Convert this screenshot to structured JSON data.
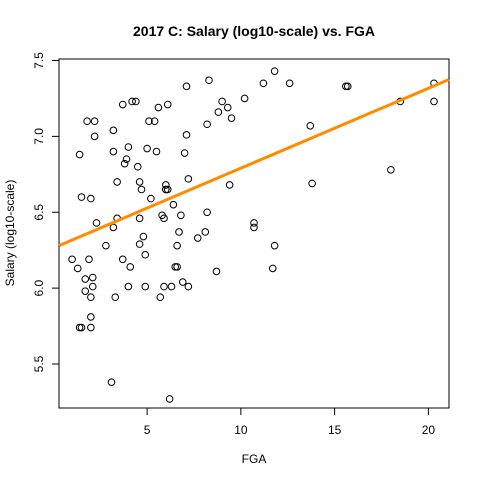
{
  "chart_data": {
    "type": "scatter",
    "title": "2017 C: Salary (log10-scale) vs. FGA",
    "xlabel": "FGA",
    "ylabel": "Salary (log10-scale)",
    "xlim": [
      0.3,
      21.1
    ],
    "ylim": [
      5.21,
      7.51
    ],
    "x_ticks": [
      5,
      10,
      15,
      20
    ],
    "y_ticks": [
      5.5,
      6.0,
      6.5,
      7.0,
      7.5
    ],
    "x_tick_labels": [
      "5",
      "10",
      "15",
      "20"
    ],
    "y_tick_labels": [
      "5.5",
      "6.0",
      "6.5",
      "7.0",
      "7.5"
    ],
    "grid": false,
    "points": [
      [
        1.0,
        6.19
      ],
      [
        1.3,
        6.13
      ],
      [
        1.4,
        6.88
      ],
      [
        1.5,
        6.6
      ],
      [
        1.4,
        5.74
      ],
      [
        1.5,
        5.74
      ],
      [
        1.7,
        6.06
      ],
      [
        1.7,
        5.98
      ],
      [
        1.8,
        7.1
      ],
      [
        1.9,
        6.19
      ],
      [
        2.0,
        6.59
      ],
      [
        2.0,
        5.94
      ],
      [
        2.0,
        5.81
      ],
      [
        2.0,
        5.74
      ],
      [
        2.1,
        6.07
      ],
      [
        2.1,
        6.01
      ],
      [
        2.2,
        7.1
      ],
      [
        2.2,
        7.0
      ],
      [
        2.3,
        6.43
      ],
      [
        2.8,
        6.28
      ],
      [
        3.1,
        5.38
      ],
      [
        3.2,
        7.04
      ],
      [
        3.2,
        6.9
      ],
      [
        3.2,
        6.4
      ],
      [
        3.3,
        5.94
      ],
      [
        3.4,
        6.7
      ],
      [
        3.4,
        6.46
      ],
      [
        3.7,
        7.21
      ],
      [
        3.7,
        6.19
      ],
      [
        3.8,
        6.82
      ],
      [
        3.9,
        6.85
      ],
      [
        4.0,
        6.93
      ],
      [
        4.0,
        6.01
      ],
      [
        4.1,
        6.14
      ],
      [
        4.2,
        7.23
      ],
      [
        4.4,
        7.23
      ],
      [
        4.5,
        6.8
      ],
      [
        4.6,
        6.46
      ],
      [
        4.6,
        6.7
      ],
      [
        4.6,
        6.29
      ],
      [
        4.7,
        6.65
      ],
      [
        4.8,
        6.34
      ],
      [
        4.9,
        6.22
      ],
      [
        4.9,
        6.01
      ],
      [
        5.0,
        6.92
      ],
      [
        5.1,
        7.1
      ],
      [
        5.2,
        6.59
      ],
      [
        5.4,
        7.1
      ],
      [
        5.5,
        6.9
      ],
      [
        5.6,
        7.19
      ],
      [
        5.7,
        5.94
      ],
      [
        5.8,
        6.48
      ],
      [
        5.9,
        6.46
      ],
      [
        5.9,
        6.01
      ],
      [
        6.0,
        6.68
      ],
      [
        6.0,
        6.65
      ],
      [
        6.0,
        6.65
      ],
      [
        6.1,
        7.21
      ],
      [
        6.1,
        6.65
      ],
      [
        6.2,
        5.27
      ],
      [
        6.3,
        6.01
      ],
      [
        6.4,
        6.55
      ],
      [
        6.5,
        6.14
      ],
      [
        6.6,
        6.28
      ],
      [
        6.6,
        6.14
      ],
      [
        6.7,
        6.37
      ],
      [
        6.8,
        6.48
      ],
      [
        6.9,
        6.04
      ],
      [
        7.0,
        6.89
      ],
      [
        7.1,
        7.33
      ],
      [
        7.1,
        7.01
      ],
      [
        7.2,
        6.72
      ],
      [
        7.2,
        6.01
      ],
      [
        7.7,
        6.33
      ],
      [
        8.1,
        6.37
      ],
      [
        8.2,
        7.08
      ],
      [
        8.2,
        6.5
      ],
      [
        8.3,
        7.37
      ],
      [
        8.7,
        6.11
      ],
      [
        8.8,
        7.16
      ],
      [
        9.0,
        7.23
      ],
      [
        9.3,
        7.19
      ],
      [
        9.4,
        6.68
      ],
      [
        9.5,
        7.12
      ],
      [
        10.2,
        7.25
      ],
      [
        10.7,
        6.43
      ],
      [
        10.7,
        6.4
      ],
      [
        11.2,
        7.35
      ],
      [
        11.7,
        6.13
      ],
      [
        11.8,
        6.28
      ],
      [
        11.8,
        7.43
      ],
      [
        12.6,
        7.35
      ],
      [
        13.7,
        7.07
      ],
      [
        13.8,
        6.69
      ],
      [
        15.6,
        7.33
      ],
      [
        15.7,
        7.33
      ],
      [
        18.0,
        6.78
      ],
      [
        18.5,
        7.23
      ],
      [
        20.3,
        7.35
      ],
      [
        20.3,
        7.23
      ]
    ],
    "trendline": {
      "x": [
        0.3,
        21.1
      ],
      "y": [
        6.28,
        7.375
      ],
      "color": "#FF8C00"
    },
    "point_color": "#000000"
  }
}
